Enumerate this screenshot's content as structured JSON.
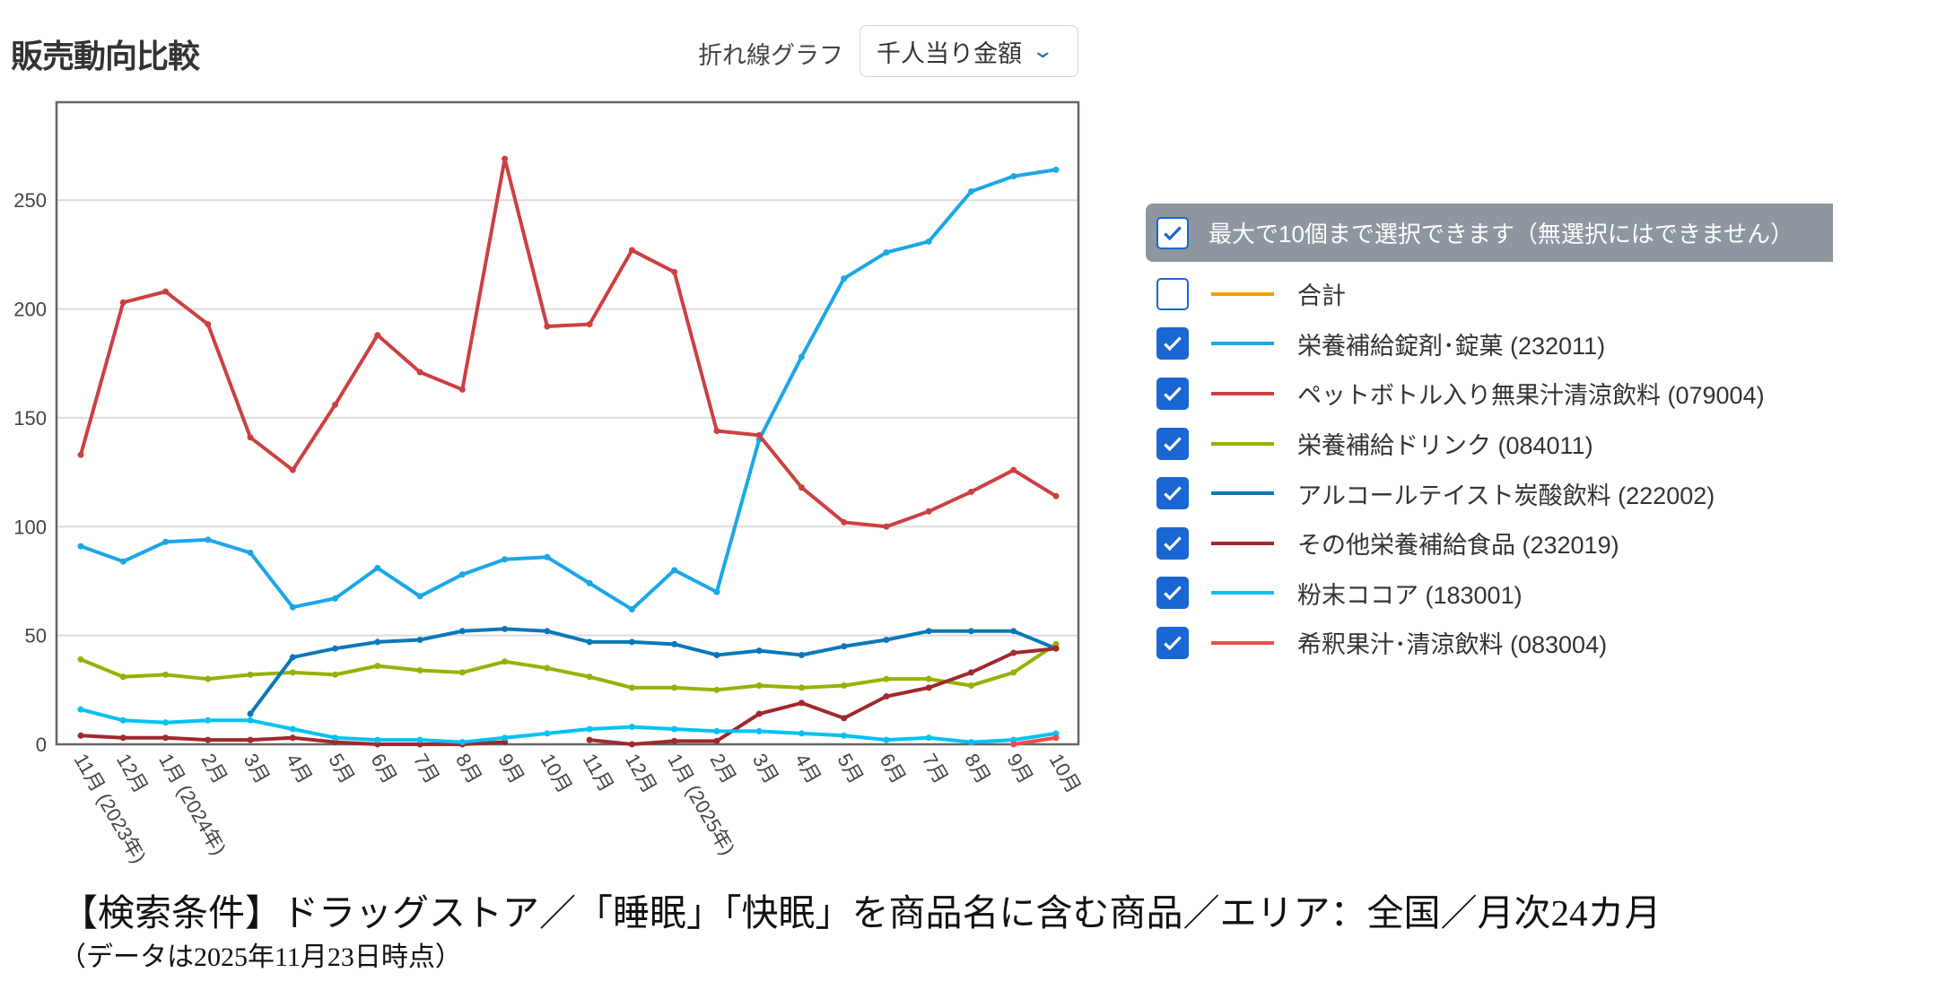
{
  "header": {
    "title": "販売動向比較",
    "chart_type_label": "折れ線グラフ",
    "metric_select": "千人当り金額"
  },
  "legend": {
    "select_all_label": "最大で10個まで選択できます（無選択にはできません）",
    "items": [
      {
        "label": "合計",
        "color": "#f0a000",
        "checked": false
      },
      {
        "label": "栄養補給錠剤･錠菓 (232011)",
        "color": "#1aa7e8",
        "checked": true
      },
      {
        "label": "ペットボトル入り無果汁清涼飲料 (079004)",
        "color": "#cc4040",
        "checked": true
      },
      {
        "label": "栄養補給ドリンク (084011)",
        "color": "#99b000",
        "checked": true
      },
      {
        "label": "アルコールテイスト炭酸飲料 (222002)",
        "color": "#0a78b8",
        "checked": true
      },
      {
        "label": "その他栄養補給食品 (232019)",
        "color": "#a0282c",
        "checked": true
      },
      {
        "label": "粉末ココア (183001)",
        "color": "#00c2f2",
        "checked": true
      },
      {
        "label": "希釈果汁･清涼飲料 (083004)",
        "color": "#f04a4a",
        "checked": true
      }
    ]
  },
  "chart_data": {
    "type": "line",
    "categories": [
      "11月 (2023年)",
      "12月",
      "1月 (2024年)",
      "2月",
      "3月",
      "4月",
      "5月",
      "6月",
      "7月",
      "8月",
      "9月",
      "10月",
      "11月",
      "12月",
      "1月 (2025年)",
      "2月",
      "3月",
      "4月",
      "5月",
      "6月",
      "7月",
      "8月",
      "9月",
      "10月"
    ],
    "ylim": [
      0,
      295
    ],
    "yticks": [
      0,
      50,
      100,
      150,
      200,
      250
    ],
    "grid": true,
    "legend_position": "right",
    "series": [
      {
        "name": "栄養補給錠剤･錠菓 (232011)",
        "color": "#1aa7e8",
        "values": [
          91,
          84,
          93,
          94,
          88,
          63,
          67,
          81,
          68,
          78,
          85,
          86,
          74,
          62,
          80,
          70,
          140,
          178,
          214,
          226,
          231,
          254,
          261,
          264
        ]
      },
      {
        "name": "ペットボトル入り無果汁清涼飲料 (079004)",
        "color": "#cc4040",
        "values": [
          133,
          203,
          208,
          193,
          141,
          126,
          156,
          188,
          171,
          163,
          269,
          192,
          193,
          227,
          217,
          144,
          142,
          118,
          102,
          100,
          107,
          116,
          126,
          114
        ]
      },
      {
        "name": "栄養補給ドリンク (084011)",
        "color": "#99b000",
        "values": [
          39,
          31,
          32,
          30,
          32,
          33,
          32,
          36,
          34,
          33,
          38,
          35,
          31,
          26,
          26,
          25,
          27,
          26,
          27,
          30,
          30,
          27,
          33,
          46
        ]
      },
      {
        "name": "アルコールテイスト炭酸飲料 (222002)",
        "color": "#0a78b8",
        "values": [
          null,
          null,
          null,
          null,
          14,
          40,
          44,
          47,
          48,
          52,
          53,
          52,
          47,
          47,
          46,
          41,
          43,
          41,
          45,
          48,
          52,
          52,
          52,
          44
        ]
      },
      {
        "name": "その他栄養補給食品 (232019)",
        "color": "#a0282c",
        "values": [
          4,
          3,
          3,
          2,
          2,
          3,
          1,
          0,
          0,
          0,
          1,
          null,
          2,
          0,
          1.5,
          1.5,
          14,
          19,
          12,
          22,
          26,
          33,
          42,
          44
        ]
      },
      {
        "name": "粉末ココア (183001)",
        "color": "#00c2f2",
        "values": [
          16,
          11,
          10,
          11,
          11,
          7,
          3,
          2,
          2,
          1,
          3,
          5,
          7,
          8,
          7,
          6,
          6,
          5,
          4,
          2,
          3,
          1,
          2,
          5
        ]
      },
      {
        "name": "希釈果汁･清涼飲料 (083004)",
        "color": "#f04a4a",
        "values": [
          null,
          null,
          null,
          null,
          null,
          null,
          null,
          null,
          null,
          null,
          null,
          null,
          null,
          null,
          null,
          null,
          null,
          null,
          null,
          null,
          null,
          null,
          0,
          3
        ]
      }
    ]
  },
  "footer": {
    "conditions": "【検索条件】ドラッグストア／「睡眠」「快眠」を商品名に含む商品／エリア：全国／月次24カ月",
    "data_date": "（データは2025年11月23日時点）"
  }
}
